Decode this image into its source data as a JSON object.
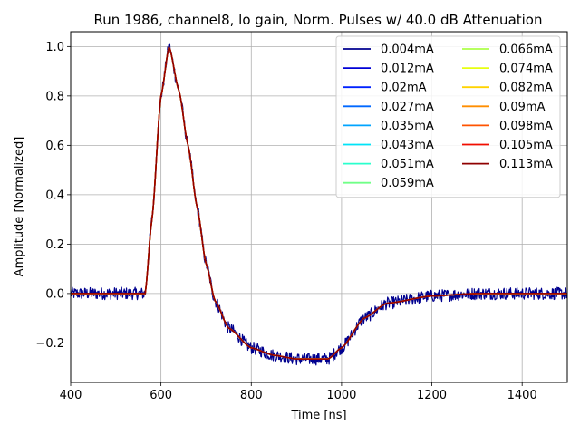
{
  "chart_data": {
    "type": "line",
    "title": "Run 1986, channel8, lo gain, Norm. Pulses w/ 40.0 dB Attenuation",
    "xlabel": "Time [ns]",
    "ylabel": "Amplitude [Normalized]",
    "xlim": [
      400,
      1500
    ],
    "ylim": [
      -0.36,
      1.06
    ],
    "xticks": [
      400,
      600,
      800,
      1000,
      1200,
      1400
    ],
    "yticks": [
      -0.2,
      0.0,
      0.2,
      0.4,
      0.6,
      0.8,
      1.0
    ],
    "xtick_labels": [
      "400",
      "600",
      "800",
      "1000",
      "1200",
      "1400"
    ],
    "ytick_labels": [
      "−0.2",
      "0.0",
      "0.2",
      "0.4",
      "0.6",
      "0.8",
      "1.0"
    ],
    "grid": true,
    "legend_position": "top-right",
    "legend_columns": 2,
    "pulse_shape": {
      "description_points": [
        [
          400,
          0.0
        ],
        [
          565,
          0.0
        ],
        [
          580,
          0.3
        ],
        [
          600,
          0.8
        ],
        [
          618,
          1.0
        ],
        [
          640,
          0.82
        ],
        [
          660,
          0.6
        ],
        [
          680,
          0.35
        ],
        [
          700,
          0.12
        ],
        [
          720,
          -0.03
        ],
        [
          750,
          -0.14
        ],
        [
          800,
          -0.22
        ],
        [
          850,
          -0.25
        ],
        [
          900,
          -0.265
        ],
        [
          970,
          -0.265
        ],
        [
          1000,
          -0.22
        ],
        [
          1050,
          -0.1
        ],
        [
          1100,
          -0.04
        ],
        [
          1200,
          -0.01
        ],
        [
          1300,
          0.0
        ],
        [
          1500,
          0.0
        ]
      ]
    },
    "noise_amplitude_lowest_series": 0.025,
    "series": [
      {
        "name": "0.004mA",
        "color": "#00008f",
        "noise": 0.025
      },
      {
        "name": "0.012mA",
        "color": "#0000d6",
        "noise": 0.0
      },
      {
        "name": "0.02mA",
        "color": "#0022ff",
        "noise": 0.0
      },
      {
        "name": "0.027mA",
        "color": "#0068ff",
        "noise": 0.0
      },
      {
        "name": "0.035mA",
        "color": "#00a4ff",
        "noise": 0.0
      },
      {
        "name": "0.043mA",
        "color": "#00e4f8",
        "noise": 0.0
      },
      {
        "name": "0.051mA",
        "color": "#2affcd",
        "noise": 0.0
      },
      {
        "name": "0.059mA",
        "color": "#70ff87",
        "noise": 0.0
      },
      {
        "name": "0.066mA",
        "color": "#adff4a",
        "noise": 0.0
      },
      {
        "name": "0.074mA",
        "color": "#e7ff10",
        "noise": 0.0
      },
      {
        "name": "0.082mA",
        "color": "#ffd300",
        "noise": 0.0
      },
      {
        "name": "0.09mA",
        "color": "#ff8e00",
        "noise": 0.0
      },
      {
        "name": "0.098mA",
        "color": "#ff5300",
        "noise": 0.0
      },
      {
        "name": "0.105mA",
        "color": "#f20e00",
        "noise": 0.0
      },
      {
        "name": "0.113mA",
        "color": "#8f0000",
        "noise": 0.0
      }
    ]
  }
}
